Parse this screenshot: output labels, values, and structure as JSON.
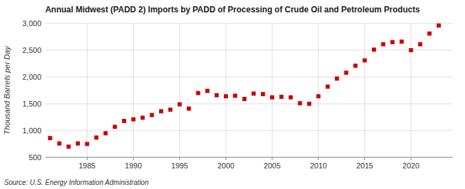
{
  "chart_data": {
    "type": "scatter",
    "title": "Annual Midwest (PADD 2) Imports by PADD of Processing of Crude Oil and Petroleum Products",
    "ylabel": "Thousand Barrels per Day",
    "source": "Source: U.S. Energy Information Administration",
    "color": "#cc0000",
    "marker": "square",
    "grid": true,
    "x": [
      1981,
      1982,
      1983,
      1984,
      1985,
      1986,
      1987,
      1988,
      1989,
      1990,
      1991,
      1992,
      1993,
      1994,
      1995,
      1996,
      1997,
      1998,
      1999,
      2000,
      2001,
      2002,
      2003,
      2004,
      2005,
      2006,
      2007,
      2008,
      2009,
      2010,
      2011,
      2012,
      2013,
      2014,
      2015,
      2016,
      2017,
      2018,
      2019,
      2020,
      2021,
      2022,
      2023
    ],
    "values": [
      860,
      760,
      700,
      760,
      750,
      870,
      950,
      1070,
      1180,
      1210,
      1240,
      1290,
      1360,
      1390,
      1490,
      1410,
      1700,
      1740,
      1660,
      1640,
      1650,
      1590,
      1690,
      1680,
      1620,
      1630,
      1620,
      1510,
      1500,
      1640,
      1820,
      1970,
      2080,
      2210,
      2310,
      2510,
      2610,
      2650,
      2660,
      2500,
      2610,
      2810,
      2960
    ],
    "xlim": [
      1980.5,
      2024.5
    ],
    "xticks": [
      1985,
      1990,
      1995,
      2000,
      2005,
      2010,
      2015,
      2020
    ],
    "ylim": [
      500,
      3000
    ],
    "yticks": [
      500,
      {
        "value": 1000,
        "label": "1,000"
      },
      {
        "value": 1500,
        "label": "1,500"
      },
      {
        "value": 2000,
        "label": "2,000"
      },
      {
        "value": 2500,
        "label": "2,500"
      },
      {
        "value": 3000,
        "label": "3,000"
      }
    ]
  }
}
